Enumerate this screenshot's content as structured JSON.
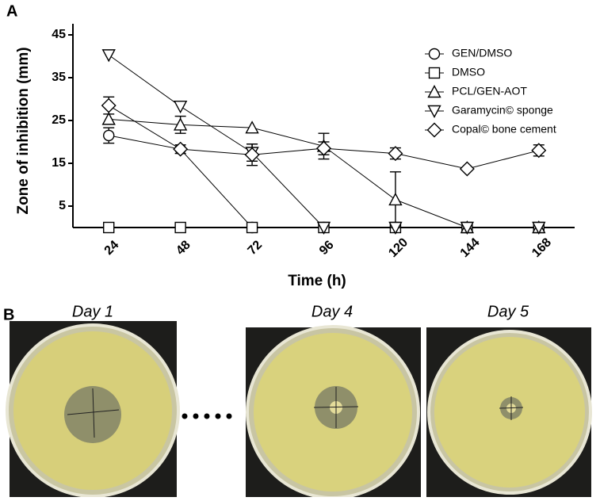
{
  "chart_data": {
    "type": "line",
    "y_label": "Zone of inhibition (mm)",
    "x_label": "Time (h)",
    "x": [
      24,
      48,
      72,
      96,
      120,
      144,
      168
    ],
    "xlim": [
      12,
      180
    ],
    "xticks": [
      24,
      48,
      72,
      96,
      120,
      144,
      168
    ],
    "ylim": [
      0,
      45
    ],
    "yticks": [
      5,
      15,
      25,
      35,
      45
    ],
    "legend": "upper right",
    "series": [
      {
        "name": "GEN/DMSO",
        "marker": "circle",
        "color": "#000000",
        "values": [
          21.5,
          18.3,
          0,
          0,
          0,
          0,
          0
        ],
        "errors": [
          1.8,
          1,
          0,
          0,
          0,
          0,
          0
        ]
      },
      {
        "name": "DMSO",
        "marker": "square",
        "color": "#000000",
        "values": [
          0,
          0,
          0,
          0,
          0,
          0,
          0
        ],
        "errors": [
          0,
          0,
          0,
          0,
          0,
          0,
          0
        ]
      },
      {
        "name": "PCL/GEN-AOT",
        "marker": "triangle-up",
        "color": "#000000",
        "values": [
          25.3,
          24,
          23.3,
          19,
          6.5,
          0,
          0
        ],
        "errors": [
          0,
          2,
          0,
          3,
          6.5,
          0,
          0
        ]
      },
      {
        "name": "Garamycin© sponge",
        "marker": "triangle-down",
        "color": "#000000",
        "values": [
          40.3,
          28.3,
          17.5,
          0,
          0,
          0,
          0
        ],
        "errors": [
          0,
          0,
          2,
          0,
          0,
          0,
          0
        ]
      },
      {
        "name": "Copal© bone cement",
        "marker": "diamond",
        "color": "#000000",
        "values": [
          28.5,
          18.3,
          17,
          18.5,
          17.3,
          13.7,
          18
        ],
        "errors": [
          2,
          0,
          2.5,
          1.5,
          1.3,
          0,
          1.3
        ]
      }
    ]
  },
  "panel_labels": [
    "A",
    "B"
  ],
  "photos": [
    {
      "label": "Day 1"
    },
    {
      "label": "Day 4"
    },
    {
      "label": "Day 5"
    }
  ]
}
